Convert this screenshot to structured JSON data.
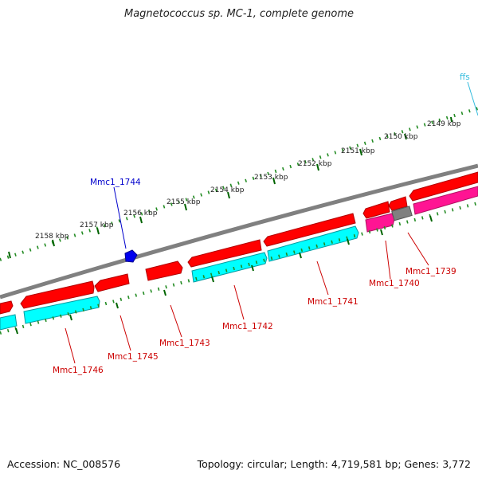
{
  "title": "Magnetococcus sp. MC-1, complete genome",
  "footer": {
    "accession_label": "Accession:",
    "accession": "NC_008576",
    "topology_label": "Topology:",
    "topology": "circular",
    "length_label": "Length:",
    "length": "4,719,581 bp",
    "genes_label": "Genes:",
    "genes": "3,772"
  },
  "colors": {
    "backbone": "#808080",
    "cds_forward": "#ff0000",
    "cds_reverse": "#00ffff",
    "pseudo_reverse": "#ff1493",
    "other_feature": "#808080",
    "ticks": "#228b22",
    "label_red": "#cc0000",
    "label_blue": "#0000cc",
    "label_cyan": "#33bbdd"
  },
  "scale_labels": [
    "2149 kbp",
    "2150 kbp",
    "2151 kbp",
    "2152 kbp",
    "2153 kbp",
    "2154 kbp",
    "2155 kbp",
    "2156 kbp",
    "2157 kbp",
    "2158 kbp"
  ],
  "gene_labels": {
    "ffs": "ffs",
    "mmc1_1744": "Mmc1_1744",
    "mmc1_1739": "Mmc1_1739",
    "mmc1_1740": "Mmc1_1740",
    "mmc1_1741": "Mmc1_1741",
    "mmc1_1742": "Mmc1_1742",
    "mmc1_1743": "Mmc1_1743",
    "mmc1_1745": "Mmc1_1745",
    "mmc1_1746": "Mmc1_1746"
  }
}
